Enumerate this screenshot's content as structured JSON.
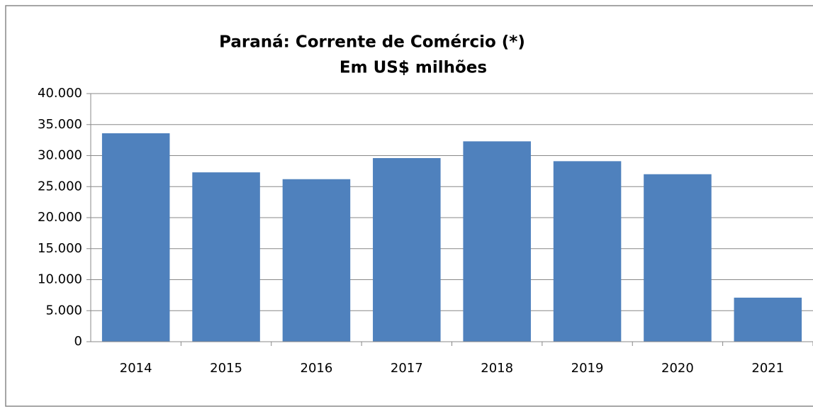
{
  "chart_data": {
    "type": "bar",
    "title": "Paraná: Corrente de Comércio (*)",
    "subtitle": "Em US$ milhões",
    "categories": [
      "2014",
      "2015",
      "2016",
      "2017",
      "2018",
      "2019",
      "2020",
      "2021"
    ],
    "values": [
      33600,
      27300,
      26200,
      29600,
      32300,
      29100,
      27000,
      7100
    ],
    "color": "#4f81bd",
    "ylim": [
      0,
      40000
    ],
    "yticks": [
      0,
      {
        "value": 5000,
        "label": "5.000"
      },
      {
        "value": 10000,
        "label": "10.000"
      },
      {
        "value": 15000,
        "label": "15.000"
      },
      {
        "value": 20000,
        "label": "20.000"
      },
      {
        "value": 25000,
        "label": "25.000"
      },
      {
        "value": 30000,
        "label": "30.000"
      },
      {
        "value": 35000,
        "label": "35.000"
      },
      {
        "value": 40000,
        "label": "40.000"
      }
    ],
    "grid": true
  }
}
